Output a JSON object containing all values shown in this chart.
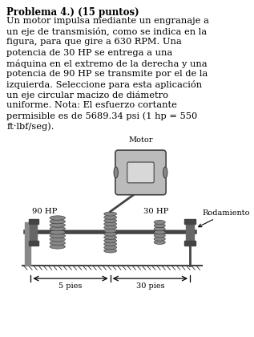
{
  "title": "Problema 4.) (15 puntos)",
  "body_lines": [
    "Un motor impulsa mediante un engranaje a",
    "un eje de transmisión, como se indica en la",
    "figura, para que gire a 630 RPM. Una",
    "potencia de 30 HP se entrega a una",
    "máquina en el extremo de la derecha y una",
    "potencia de 90 HP se transmite por el de la",
    "izquierda. Seleccione para esta aplicación",
    "un eje circular macizo de diámetro",
    "uniforme. Nota: El esfuerzo cortante",
    "permisible es de 5689.34 psi (1 hp = 550",
    "ft·lbf/seg)."
  ],
  "label_motor": "Motor",
  "label_90hp": "90 HP",
  "label_30hp": "30 HP",
  "label_rodamiento": "Rodamiento",
  "label_5pies": "5 pies",
  "label_30pies": "30 pies",
  "bg_color": "#ffffff",
  "text_color": "#000000",
  "diagram_gray": "#888888",
  "diagram_light": "#bbbbbb",
  "diagram_dark": "#444444",
  "diagram_mid": "#666666"
}
